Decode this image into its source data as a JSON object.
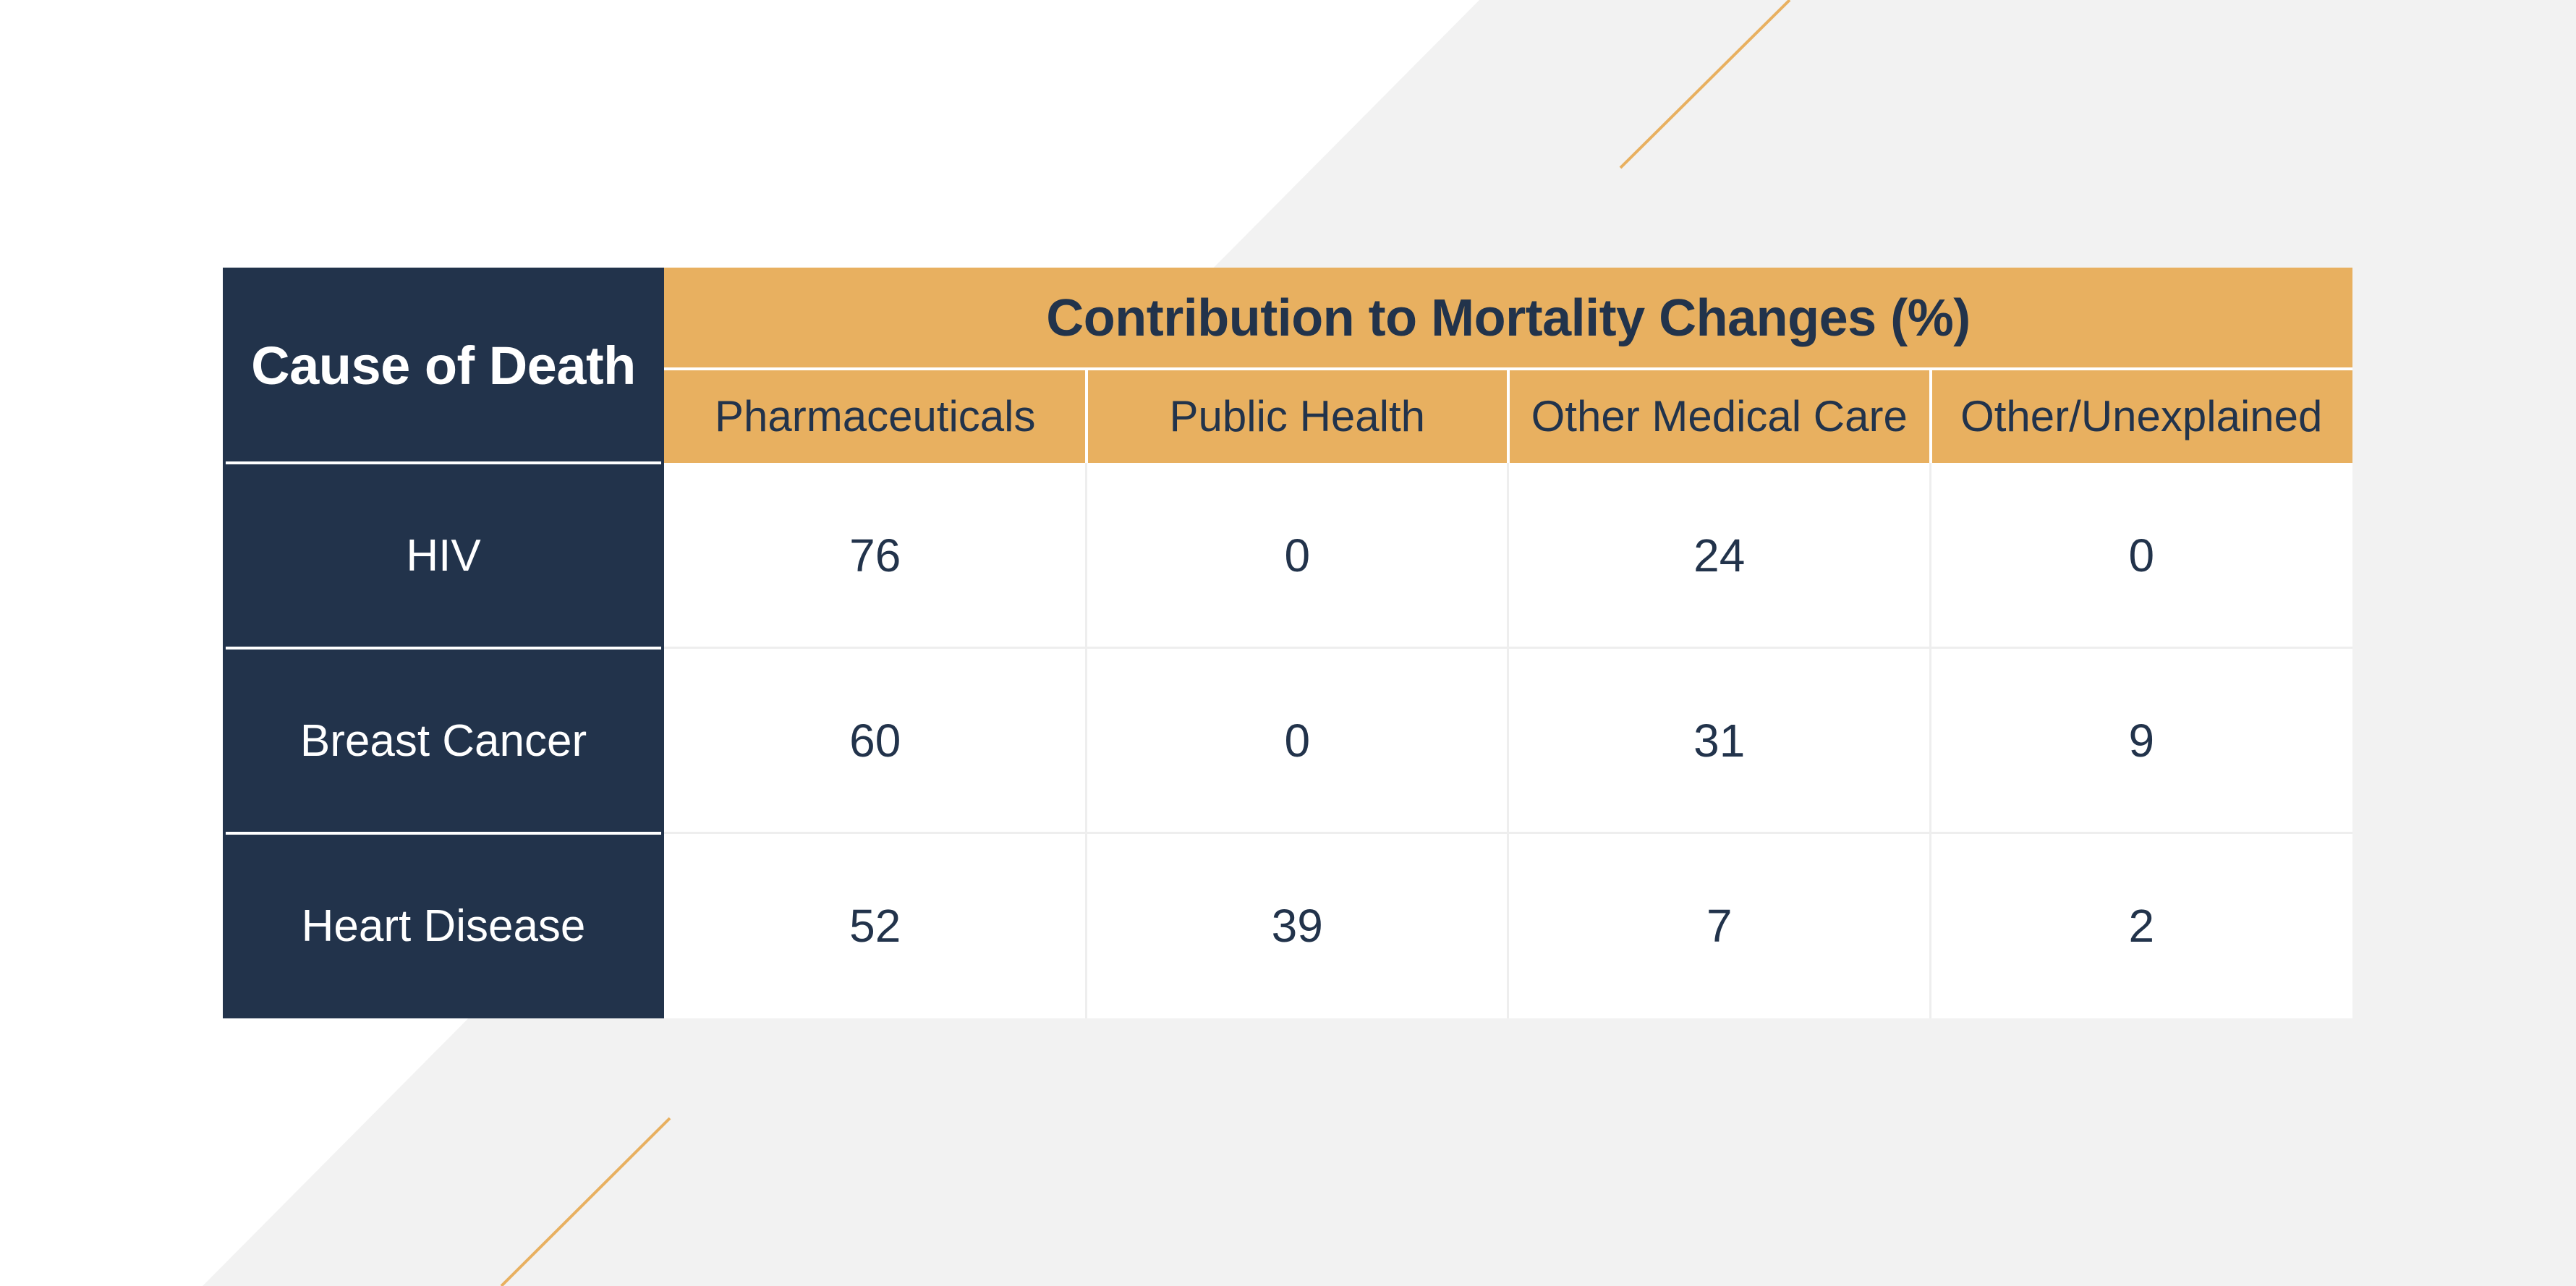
{
  "theme": {
    "navy": "#22334b",
    "gold": "#e8b060",
    "light_gray": "#f2f2f2",
    "white": "#ffffff"
  },
  "chart_data": {
    "type": "table",
    "stub_header": "Cause of Death",
    "group_header": "Contribution to Mortality Changes (%)",
    "columns": [
      "Pharmaceuticals",
      "Public Health",
      "Other Medical Care",
      "Other/Unexplained"
    ],
    "rows": [
      {
        "label": "HIV",
        "values": [
          "76",
          "0",
          "24",
          "0"
        ]
      },
      {
        "label": "Breast Cancer",
        "values": [
          "60",
          "0",
          "31",
          "9"
        ]
      },
      {
        "label": "Heart Disease",
        "values": [
          "52",
          "39",
          "7",
          "2"
        ]
      }
    ]
  }
}
